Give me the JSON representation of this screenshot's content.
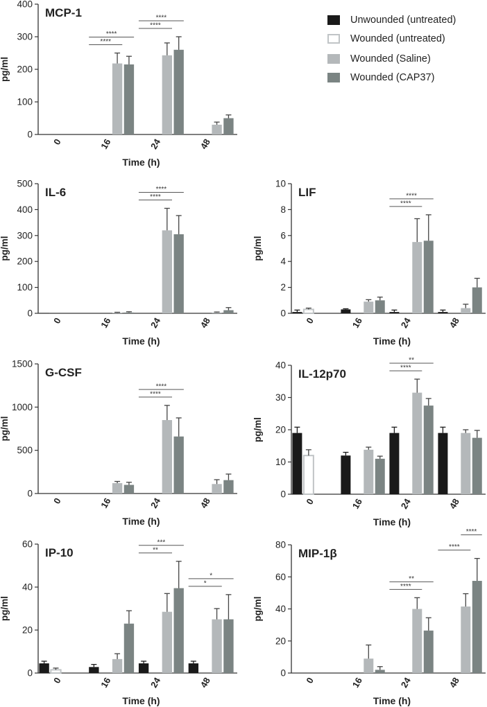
{
  "figure": {
    "xlabel": "Time (h)",
    "ylabel": "pg/ml",
    "timepoints": [
      "0",
      "16",
      "24",
      "48"
    ]
  },
  "legend": {
    "items": [
      {
        "label": "Unwounded (untreated)",
        "color": "#1a1a1a",
        "fill": true
      },
      {
        "label": "Wounded (untreated)",
        "color": "#ffffff",
        "fill": false
      },
      {
        "label": "Wounded (Saline)",
        "color": "#b4b8ba",
        "fill": true
      },
      {
        "label": "Wounded (CAP37)",
        "color": "#7b8483",
        "fill": true
      }
    ]
  },
  "chart_data": [
    {
      "type": "bar",
      "title": "MCP-1",
      "ylim": [
        0,
        400
      ],
      "yticks": [
        0,
        100,
        200,
        300,
        400
      ],
      "categories": [
        "0",
        "16",
        "24",
        "48"
      ],
      "series": [
        {
          "name": "Unwounded (untreated)",
          "values": [
            0,
            0,
            0,
            0
          ],
          "errors": [
            0,
            0,
            0,
            0
          ]
        },
        {
          "name": "Wounded (untreated)",
          "values": [
            0,
            0,
            0,
            0
          ],
          "errors": [
            0,
            0,
            0,
            0
          ]
        },
        {
          "name": "Wounded (Saline)",
          "values": [
            0,
            218,
            243,
            30
          ],
          "errors": [
            0,
            32,
            38,
            8
          ]
        },
        {
          "name": "Wounded (CAP37)",
          "values": [
            0,
            215,
            260,
            50
          ],
          "errors": [
            0,
            25,
            40,
            10
          ]
        }
      ],
      "significance": [
        {
          "cat": 1,
          "from": 0,
          "to": 2,
          "label": "****",
          "level": 0
        },
        {
          "cat": 1,
          "from": 0,
          "to": 3,
          "label": "****",
          "level": 1
        },
        {
          "cat": 2,
          "from": 0,
          "to": 2,
          "label": "****",
          "level": 0
        },
        {
          "cat": 2,
          "from": 0,
          "to": 3,
          "label": "****",
          "level": 1
        }
      ]
    },
    {
      "type": "bar",
      "title": "IL-6",
      "ylim": [
        0,
        500
      ],
      "yticks": [
        0,
        100,
        200,
        300,
        400,
        500
      ],
      "categories": [
        "0",
        "16",
        "24",
        "48"
      ],
      "series": [
        {
          "name": "Unwounded (untreated)",
          "values": [
            1,
            0,
            0,
            0
          ],
          "errors": [
            0,
            0,
            0,
            0
          ]
        },
        {
          "name": "Wounded (untreated)",
          "values": [
            0,
            0,
            0,
            0
          ],
          "errors": [
            0,
            0,
            0,
            0
          ]
        },
        {
          "name": "Wounded (Saline)",
          "values": [
            0,
            2,
            320,
            3
          ],
          "errors": [
            0,
            2,
            85,
            2
          ]
        },
        {
          "name": "Wounded (CAP37)",
          "values": [
            0,
            3,
            305,
            12
          ],
          "errors": [
            0,
            3,
            72,
            10
          ]
        }
      ],
      "significance": [
        {
          "cat": 2,
          "from": 0,
          "to": 2,
          "label": "****",
          "level": 0
        },
        {
          "cat": 2,
          "from": 0,
          "to": 3,
          "label": "****",
          "level": 1
        }
      ]
    },
    {
      "type": "bar",
      "title": "LIF",
      "ylim": [
        0,
        10
      ],
      "yticks": [
        0,
        2,
        4,
        6,
        8,
        10
      ],
      "categories": [
        "0",
        "16",
        "24",
        "48"
      ],
      "series": [
        {
          "name": "Unwounded (untreated)",
          "values": [
            0.1,
            0.3,
            0.1,
            0.1
          ],
          "errors": [
            0.15,
            0.05,
            0.15,
            0.15
          ]
        },
        {
          "name": "Wounded (untreated)",
          "values": [
            0.3,
            0,
            0,
            0
          ],
          "errors": [
            0.1,
            0,
            0,
            0
          ]
        },
        {
          "name": "Wounded (Saline)",
          "values": [
            0,
            0.9,
            5.5,
            0.4
          ],
          "errors": [
            0,
            0.15,
            1.8,
            0.3
          ]
        },
        {
          "name": "Wounded (CAP37)",
          "values": [
            0,
            1.0,
            5.6,
            2.0
          ],
          "errors": [
            0,
            0.25,
            2.0,
            0.7
          ]
        }
      ],
      "significance": [
        {
          "cat": 2,
          "from": 0,
          "to": 2,
          "label": "****",
          "level": 0
        },
        {
          "cat": 2,
          "from": 0,
          "to": 3,
          "label": "****",
          "level": 1
        }
      ]
    },
    {
      "type": "bar",
      "title": "G-CSF",
      "ylim": [
        0,
        1500
      ],
      "yticks": [
        0,
        500,
        1000,
        1500
      ],
      "categories": [
        "0",
        "16",
        "24",
        "48"
      ],
      "series": [
        {
          "name": "Unwounded (untreated)",
          "values": [
            0,
            0,
            0,
            0
          ],
          "errors": [
            0,
            0,
            0,
            0
          ]
        },
        {
          "name": "Wounded (untreated)",
          "values": [
            0,
            0,
            0,
            0
          ],
          "errors": [
            0,
            0,
            0,
            0
          ]
        },
        {
          "name": "Wounded (Saline)",
          "values": [
            0,
            120,
            850,
            110
          ],
          "errors": [
            0,
            20,
            170,
            50
          ]
        },
        {
          "name": "Wounded (CAP37)",
          "values": [
            0,
            100,
            660,
            155
          ],
          "errors": [
            0,
            30,
            215,
            70
          ]
        }
      ],
      "significance": [
        {
          "cat": 2,
          "from": 0,
          "to": 2,
          "label": "****",
          "level": 0
        },
        {
          "cat": 2,
          "from": 0,
          "to": 3,
          "label": "****",
          "level": 1
        }
      ]
    },
    {
      "type": "bar",
      "title": "IL-12p70",
      "ylim": [
        0,
        40
      ],
      "yticks": [
        0,
        10,
        20,
        30,
        40
      ],
      "categories": [
        "0",
        "16",
        "24",
        "48"
      ],
      "series": [
        {
          "name": "Unwounded (untreated)",
          "values": [
            19,
            12,
            19,
            19
          ],
          "errors": [
            1.8,
            1.0,
            1.8,
            1.8
          ]
        },
        {
          "name": "Wounded (untreated)",
          "values": [
            12,
            0,
            0,
            0
          ],
          "errors": [
            1.8,
            0,
            0,
            0
          ]
        },
        {
          "name": "Wounded (Saline)",
          "values": [
            0,
            13.8,
            31.5,
            19
          ],
          "errors": [
            0,
            0.8,
            4.2,
            1.0
          ]
        },
        {
          "name": "Wounded (CAP37)",
          "values": [
            0,
            11,
            27.5,
            17.5
          ],
          "errors": [
            0,
            0.8,
            2.2,
            2.3
          ]
        }
      ],
      "significance": [
        {
          "cat": 2,
          "from": 0,
          "to": 2,
          "label": "****",
          "level": 0
        },
        {
          "cat": 2,
          "from": 0,
          "to": 3,
          "label": "**",
          "level": 1
        }
      ]
    },
    {
      "type": "bar",
      "title": "IP-10",
      "ylim": [
        0,
        60
      ],
      "yticks": [
        0,
        20,
        40,
        60
      ],
      "categories": [
        "0",
        "16",
        "24",
        "48"
      ],
      "series": [
        {
          "name": "Unwounded (untreated)",
          "values": [
            4.5,
            2.8,
            4.5,
            4.5
          ],
          "errors": [
            1,
            1.2,
            1,
            1
          ]
        },
        {
          "name": "Wounded (untreated)",
          "values": [
            1.5,
            0,
            0,
            0
          ],
          "errors": [
            0.8,
            0,
            0,
            0
          ]
        },
        {
          "name": "Wounded (Saline)",
          "values": [
            0,
            6.5,
            28.5,
            25
          ],
          "errors": [
            0,
            2.5,
            8.5,
            5
          ]
        },
        {
          "name": "Wounded (CAP37)",
          "values": [
            0,
            23,
            39.5,
            25
          ],
          "errors": [
            0,
            6,
            12.5,
            11.5
          ]
        }
      ],
      "significance": [
        {
          "cat": 2,
          "from": 0,
          "to": 2,
          "label": "**",
          "level": 0
        },
        {
          "cat": 2,
          "from": 0,
          "to": 3,
          "label": "***",
          "level": 1
        },
        {
          "cat": 3,
          "from": 0,
          "to": 2,
          "label": "*",
          "level": 0
        },
        {
          "cat": 3,
          "from": 0,
          "to": 3,
          "label": "*",
          "level": 1
        }
      ]
    },
    {
      "type": "bar",
      "title": "MIP-1β",
      "ylim": [
        0,
        80
      ],
      "yticks": [
        0,
        20,
        40,
        60,
        80
      ],
      "categories": [
        "0",
        "16",
        "24",
        "48"
      ],
      "series": [
        {
          "name": "Unwounded (untreated)",
          "values": [
            0,
            0,
            0,
            0
          ],
          "errors": [
            0,
            0,
            0,
            0
          ]
        },
        {
          "name": "Wounded (untreated)",
          "values": [
            0,
            0,
            0,
            0
          ],
          "errors": [
            0,
            0,
            0,
            0
          ]
        },
        {
          "name": "Wounded (Saline)",
          "values": [
            0,
            9,
            40,
            41.5
          ],
          "errors": [
            0,
            8.5,
            7,
            8
          ]
        },
        {
          "name": "Wounded (CAP37)",
          "values": [
            0,
            2,
            26.5,
            57.5
          ],
          "errors": [
            0,
            2,
            8,
            14
          ]
        }
      ],
      "significance": [
        {
          "cat": 2,
          "from": 0,
          "to": 2,
          "label": "****",
          "level": 0
        },
        {
          "cat": 2,
          "from": 0,
          "to": 3,
          "label": "**",
          "level": 1
        },
        {
          "cat": 3,
          "from": 0,
          "to": 2,
          "label": "****",
          "level": 0
        },
        {
          "cat": 3,
          "from": 2,
          "to": 3,
          "label": "****",
          "level": 2
        }
      ]
    }
  ]
}
